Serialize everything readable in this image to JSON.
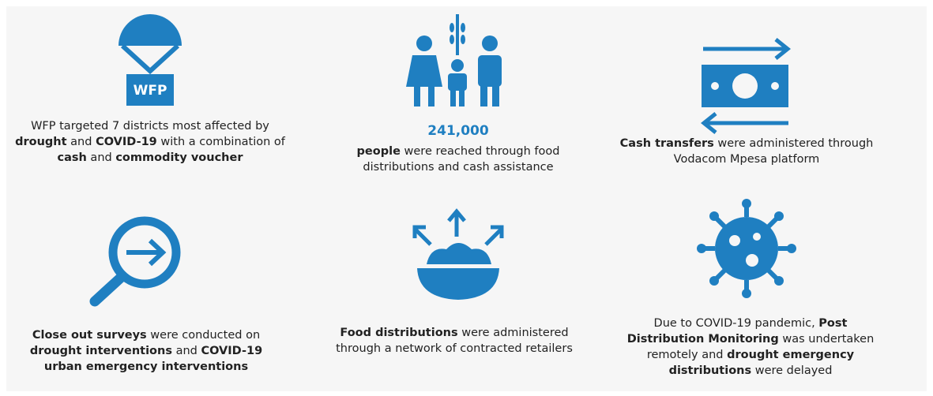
{
  "cards": [
    {
      "icon_label": "WFP",
      "parts": [
        {
          "text": "WFP targeted 7 districts most affected by ",
          "bold": false
        },
        {
          "text": "drought",
          "bold": true
        },
        {
          "text": " and ",
          "bold": false
        },
        {
          "text": "COVID-19",
          "bold": true
        },
        {
          "text": " with a combination of ",
          "bold": false
        },
        {
          "text": "cash",
          "bold": true
        },
        {
          "text": " and ",
          "bold": false
        },
        {
          "text": "commodity voucher",
          "bold": true
        }
      ]
    },
    {
      "headline": "241,000",
      "parts": [
        {
          "text": "people",
          "bold": true
        },
        {
          "text": " were reached through food distributions and cash assistance",
          "bold": false
        }
      ]
    },
    {
      "parts": [
        {
          "text": "Cash transfers",
          "bold": true
        },
        {
          "text": " were administered through Vodacom Mpesa platform",
          "bold": false
        }
      ]
    },
    {
      "parts": [
        {
          "text": "Close out surveys",
          "bold": true
        },
        {
          "text": " were conducted on ",
          "bold": false
        },
        {
          "text": "drought interventions",
          "bold": true
        },
        {
          "text": " and ",
          "bold": false
        },
        {
          "text": "COVID-19 urban emergency interventions",
          "bold": true
        }
      ]
    },
    {
      "parts": [
        {
          "text": "Food distributions",
          "bold": true
        },
        {
          "text": " were administered through a network of contracted retailers",
          "bold": false
        }
      ]
    },
    {
      "parts": [
        {
          "text": "Due to COVID-19 pandemic, ",
          "bold": false
        },
        {
          "text": "Post Distribution Monitoring",
          "bold": true
        },
        {
          "text": " was undertaken remotely and ",
          "bold": false
        },
        {
          "text": "drought emergency distributions",
          "bold": true
        },
        {
          "text": " were delayed",
          "bold": false
        }
      ]
    }
  ]
}
